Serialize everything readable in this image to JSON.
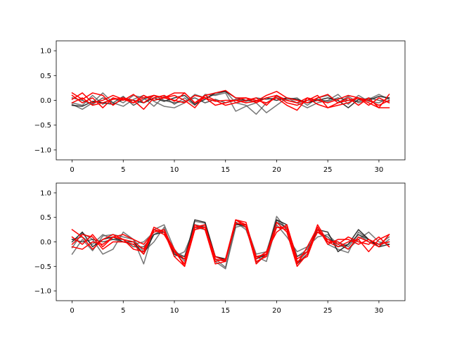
{
  "chart_data": [
    {
      "type": "line",
      "xlim": [
        -1.55,
        32.55
      ],
      "ylim": [
        -1.2,
        1.2
      ],
      "xticks": [
        0,
        5,
        10,
        15,
        20,
        25,
        30
      ],
      "xtick_labels": [
        "0",
        "5",
        "10",
        "15",
        "20",
        "25",
        "30"
      ],
      "yticks": [
        -1.0,
        -0.5,
        0.0,
        0.5,
        1.0
      ],
      "ytick_labels": [
        "−1.0",
        "−0.5",
        "0.0",
        "0.5",
        "1.0"
      ],
      "grid": false,
      "x": [
        0,
        1,
        2,
        3,
        4,
        5,
        6,
        7,
        8,
        9,
        10,
        11,
        12,
        13,
        14,
        15,
        16,
        17,
        18,
        19,
        20,
        21,
        22,
        23,
        24,
        25,
        26,
        27,
        28,
        29,
        30,
        31
      ],
      "series": [
        {
          "color": "#555555",
          "opacity": 0.8,
          "values": [
            -0.08,
            -0.18,
            -0.05,
            0.15,
            -0.05,
            -0.12,
            0.02,
            0.1,
            -0.02,
            -0.12,
            -0.15,
            -0.05,
            0.12,
            0.05,
            0.12,
            0.18,
            -0.05,
            -0.1,
            -0.28,
            -0.05,
            0.08,
            0.02,
            0.05,
            -0.1,
            0.05,
            0.1,
            -0.05,
            0.08,
            -0.05,
            0.02,
            0.12,
            0.02
          ]
        },
        {
          "color": "#555555",
          "opacity": 0.8,
          "values": [
            -0.05,
            -0.1,
            0.1,
            -0.08,
            0.05,
            -0.05,
            0.1,
            0.05,
            -0.12,
            0.08,
            -0.08,
            0.05,
            -0.1,
            0.12,
            0.1,
            0.15,
            -0.22,
            -0.12,
            -0.05,
            -0.25,
            -0.1,
            0.05,
            -0.05,
            -0.15,
            -0.05,
            0.0,
            0.12,
            -0.08,
            0.1,
            -0.02,
            -0.05,
            0.05
          ]
        },
        {
          "color": "#111111",
          "opacity": 0.85,
          "values": [
            -0.1,
            -0.12,
            -0.02,
            -0.05,
            -0.08,
            0.02,
            0.0,
            -0.05,
            0.05,
            -0.02,
            0.05,
            0.1,
            -0.08,
            0.02,
            0.15,
            0.18,
            0.05,
            0.0,
            -0.02,
            0.05,
            0.0,
            0.05,
            0.02,
            -0.05,
            0.0,
            0.05,
            0.0,
            -0.15,
            0.02,
            0.0,
            0.08,
            0.05
          ]
        },
        {
          "color": "#333333",
          "opacity": 0.8,
          "values": [
            0.05,
            0.0,
            -0.08,
            0.05,
            -0.05,
            0.08,
            -0.1,
            0.02,
            0.1,
            0.0,
            -0.05,
            -0.02,
            0.05,
            -0.05,
            0.02,
            -0.05,
            0.02,
            -0.02,
            0.05,
            0.02,
            0.05,
            0.0,
            -0.05,
            0.0,
            0.02,
            -0.02,
            0.05,
            0.0,
            -0.02,
            0.05,
            0.0,
            -0.02
          ]
        },
        {
          "color": "#ff0000",
          "opacity": 1,
          "values": [
            0.15,
            0.02,
            0.15,
            0.1,
            -0.1,
            0.05,
            0.0,
            -0.18,
            0.05,
            0.1,
            -0.02,
            0.15,
            -0.05,
            0.05,
            -0.02,
            0.0,
            0.0,
            -0.05,
            -0.02,
            0.1,
            0.18,
            0.05,
            0.0,
            -0.05,
            0.05,
            0.12,
            -0.05,
            0.05,
            -0.1,
            0.05,
            -0.15,
            0.12
          ]
        },
        {
          "color": "#ff0000",
          "opacity": 1,
          "values": [
            0.02,
            0.15,
            -0.05,
            0.0,
            0.1,
            0.02,
            -0.05,
            0.1,
            0.0,
            0.05,
            0.15,
            0.15,
            -0.05,
            0.1,
            0.15,
            0.2,
            0.05,
            0.05,
            -0.05,
            0.05,
            0.1,
            0.0,
            -0.05,
            0.05,
            0.0,
            -0.05,
            0.02,
            0.1,
            0.05,
            0.0,
            -0.1,
            0.0
          ]
        },
        {
          "color": "#ff0000",
          "opacity": 1,
          "values": [
            0.1,
            -0.05,
            0.05,
            -0.15,
            0.05,
            0.0,
            0.12,
            -0.05,
            0.1,
            0.05,
            0.0,
            -0.05,
            0.1,
            0.05,
            -0.1,
            -0.05,
            0.0,
            0.05,
            0.0,
            -0.05,
            0.05,
            -0.1,
            -0.2,
            0.05,
            -0.08,
            -0.15,
            -0.1,
            -0.05,
            0.05,
            -0.05,
            -0.15,
            -0.15
          ]
        },
        {
          "color": "#ff0000",
          "opacity": 1,
          "values": [
            -0.05,
            0.05,
            -0.1,
            -0.05,
            0.02,
            0.05,
            -0.05,
            0.05,
            0.1,
            0.05,
            0.1,
            0.0,
            -0.15,
            0.1,
            0.0,
            -0.1,
            -0.05,
            0.0,
            0.05,
            -0.1,
            0.1,
            -0.05,
            -0.1,
            0.0,
            0.1,
            -0.15,
            -0.05,
            0.0,
            0.05,
            -0.1,
            0.05,
            -0.05
          ]
        }
      ]
    },
    {
      "type": "line",
      "xlim": [
        -1.55,
        32.55
      ],
      "ylim": [
        -1.2,
        1.2
      ],
      "xticks": [
        0,
        5,
        10,
        15,
        20,
        25,
        30
      ],
      "xtick_labels": [
        "0",
        "5",
        "10",
        "15",
        "20",
        "25",
        "30"
      ],
      "yticks": [
        -1.0,
        -0.5,
        0.0,
        0.5,
        1.0
      ],
      "ytick_labels": [
        "−1.0",
        "−0.5",
        "0.0",
        "0.5",
        "1.0"
      ],
      "grid": false,
      "x": [
        0,
        1,
        2,
        3,
        4,
        5,
        6,
        7,
        8,
        9,
        10,
        11,
        12,
        13,
        14,
        15,
        16,
        17,
        18,
        19,
        20,
        21,
        22,
        23,
        24,
        25,
        26,
        27,
        28,
        29,
        30,
        31
      ],
      "series": [
        {
          "color": "#555555",
          "opacity": 0.8,
          "values": [
            -0.25,
            0.05,
            -0.18,
            0.12,
            0.15,
            0.1,
            0.05,
            -0.45,
            0.25,
            0.35,
            -0.15,
            -0.4,
            0.42,
            0.38,
            -0.35,
            -0.52,
            0.38,
            0.3,
            -0.42,
            -0.25,
            0.52,
            0.25,
            -0.42,
            -0.2,
            0.3,
            -0.05,
            -0.15,
            -0.22,
            0.2,
            0.05,
            -0.1,
            0.05
          ]
        },
        {
          "color": "#555555",
          "opacity": 0.8,
          "values": [
            -0.12,
            0.18,
            0.05,
            -0.25,
            -0.15,
            0.2,
            0.05,
            -0.2,
            0.0,
            0.3,
            -0.3,
            -0.2,
            0.3,
            0.25,
            -0.4,
            -0.55,
            0.3,
            0.35,
            -0.25,
            -0.2,
            0.45,
            0.25,
            -0.3,
            -0.15,
            0.25,
            0.05,
            0.0,
            -0.1,
            0.15,
            0.0,
            -0.05,
            0.1
          ]
        },
        {
          "color": "#555555",
          "opacity": 0.8,
          "values": [
            0.05,
            0.1,
            -0.05,
            0.15,
            0.05,
            0.0,
            -0.05,
            0.0,
            0.2,
            0.25,
            -0.2,
            -0.3,
            0.25,
            0.35,
            -0.3,
            -0.35,
            0.4,
            0.25,
            -0.3,
            -0.4,
            0.35,
            0.1,
            -0.2,
            -0.1,
            0.1,
            0.15,
            -0.05,
            -0.15,
            0.05,
            0.2,
            0.0,
            -0.05
          ]
        },
        {
          "color": "#111111",
          "opacity": 0.85,
          "values": [
            0.0,
            0.2,
            -0.1,
            0.05,
            0.1,
            0.0,
            0.0,
            -0.25,
            0.15,
            0.2,
            -0.25,
            -0.35,
            0.45,
            0.4,
            -0.3,
            -0.35,
            0.35,
            0.35,
            -0.35,
            -0.25,
            0.45,
            0.35,
            -0.45,
            -0.25,
            0.25,
            0.2,
            -0.2,
            -0.05,
            0.25,
            0.05,
            -0.1,
            -0.05
          ]
        },
        {
          "color": "#333333",
          "opacity": 0.8,
          "values": [
            0.05,
            0.0,
            0.05,
            0.0,
            0.05,
            0.05,
            -0.1,
            -0.1,
            0.15,
            0.25,
            -0.25,
            -0.3,
            0.35,
            0.3,
            -0.3,
            -0.4,
            0.4,
            0.3,
            -0.3,
            -0.3,
            0.4,
            0.3,
            -0.3,
            -0.2,
            0.2,
            0.1,
            -0.1,
            -0.05,
            0.15,
            0.05,
            -0.05,
            0.0
          ]
        },
        {
          "color": "#ff0000",
          "opacity": 1,
          "values": [
            0.25,
            0.1,
            -0.15,
            0.05,
            0.15,
            0.05,
            -0.15,
            -0.2,
            0.3,
            0.2,
            -0.3,
            -0.5,
            0.3,
            0.35,
            -0.4,
            -0.35,
            0.45,
            0.35,
            -0.45,
            -0.25,
            0.4,
            0.2,
            -0.5,
            -0.25,
            0.35,
            0.0,
            0.0,
            -0.15,
            0.1,
            0.0,
            -0.1,
            0.15
          ]
        },
        {
          "color": "#ff0000",
          "opacity": 1,
          "values": [
            -0.05,
            0.15,
            0.1,
            -0.15,
            0.0,
            0.0,
            -0.05,
            -0.25,
            0.25,
            0.2,
            -0.15,
            -0.5,
            0.25,
            0.3,
            -0.35,
            -0.4,
            0.45,
            0.4,
            -0.35,
            -0.2,
            0.2,
            0.35,
            -0.35,
            -0.2,
            0.2,
            0.05,
            -0.05,
            0.1,
            0.0,
            -0.05,
            0.1,
            -0.1
          ]
        },
        {
          "color": "#ff0000",
          "opacity": 1,
          "values": [
            0.1,
            -0.05,
            0.15,
            -0.1,
            0.1,
            0.15,
            0.05,
            -0.05,
            0.2,
            0.25,
            -0.2,
            -0.45,
            0.35,
            0.25,
            -0.45,
            -0.4,
            0.45,
            0.3,
            -0.4,
            -0.3,
            0.3,
            0.25,
            -0.45,
            -0.1,
            0.3,
            -0.05,
            0.05,
            0.05,
            -0.05,
            0.05,
            -0.05,
            0.0
          ]
        },
        {
          "color": "#ff0000",
          "opacity": 1,
          "values": [
            -0.1,
            -0.15,
            0.0,
            -0.05,
            0.1,
            0.05,
            0.0,
            -0.15,
            0.25,
            0.15,
            -0.2,
            -0.35,
            0.3,
            0.3,
            -0.3,
            -0.38,
            0.38,
            0.35,
            -0.3,
            -0.25,
            0.3,
            0.3,
            -0.4,
            -0.3,
            0.25,
            0.0,
            -0.1,
            0.0,
            0.05,
            -0.2,
            0.05,
            0.15
          ]
        }
      ]
    }
  ]
}
